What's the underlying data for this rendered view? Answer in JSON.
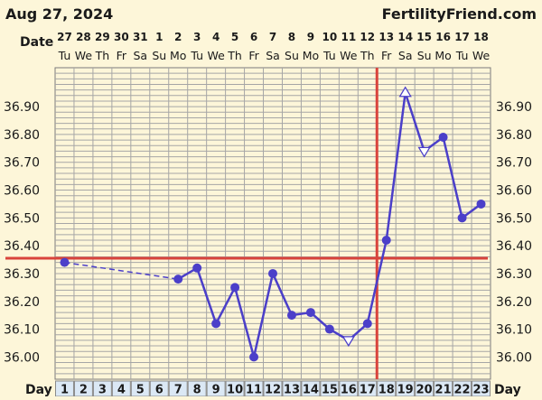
{
  "header": {
    "chart_date": "Aug 27, 2024",
    "site": "FertilityFriend.com",
    "date_label": "Date",
    "day_label_left": "Day",
    "day_label_right": "Day"
  },
  "colors": {
    "background": "#fdf6d9",
    "grid": "#a6a6a6",
    "plot_bg": "#fdf6d9",
    "series": "#4b3fc9",
    "coverline": "#d9443c",
    "ovulation_line": "#d9443c",
    "day_box": "#dbe8f5"
  },
  "chart_data": {
    "type": "line",
    "title": "",
    "xlabel": "Day",
    "ylabel": "",
    "ylim": [
      35.92,
      37.04
    ],
    "yticks": [
      "36.00",
      "36.10",
      "36.20",
      "36.30",
      "36.40",
      "36.50",
      "36.60",
      "36.70",
      "36.80",
      "36.90"
    ],
    "dates": [
      "27",
      "28",
      "29",
      "30",
      "31",
      "1",
      "2",
      "3",
      "4",
      "5",
      "6",
      "7",
      "8",
      "9",
      "10",
      "11",
      "12",
      "13",
      "14",
      "15",
      "16",
      "17",
      "18"
    ],
    "weekdays": [
      "Tu",
      "We",
      "Th",
      "Fr",
      "Sa",
      "Su",
      "Mo",
      "Tu",
      "We",
      "Th",
      "Fr",
      "Sa",
      "Su",
      "Mo",
      "Tu",
      "We",
      "Th",
      "Fr",
      "Sa",
      "Su",
      "Mo",
      "Tu",
      "We"
    ],
    "days": [
      1,
      2,
      3,
      4,
      5,
      6,
      7,
      8,
      9,
      10,
      11,
      12,
      13,
      14,
      15,
      16,
      17,
      18,
      19,
      20,
      21,
      22,
      23
    ],
    "temperatures": [
      {
        "day": 1,
        "temp": 36.34,
        "marker": "dot"
      },
      {
        "day": 7,
        "temp": 36.28,
        "marker": "dot"
      },
      {
        "day": 8,
        "temp": 36.32,
        "marker": "dot"
      },
      {
        "day": 9,
        "temp": 36.12,
        "marker": "dot"
      },
      {
        "day": 10,
        "temp": 36.25,
        "marker": "dot"
      },
      {
        "day": 11,
        "temp": 36.0,
        "marker": "dot"
      },
      {
        "day": 12,
        "temp": 36.3,
        "marker": "dot"
      },
      {
        "day": 13,
        "temp": 36.15,
        "marker": "dot"
      },
      {
        "day": 14,
        "temp": 36.16,
        "marker": "dot"
      },
      {
        "day": 15,
        "temp": 36.1,
        "marker": "dot"
      },
      {
        "day": 16,
        "temp": 36.06,
        "marker": "triangle-down"
      },
      {
        "day": 17,
        "temp": 36.12,
        "marker": "dot"
      },
      {
        "day": 18,
        "temp": 36.42,
        "marker": "dot"
      },
      {
        "day": 19,
        "temp": 36.95,
        "marker": "triangle-up"
      },
      {
        "day": 20,
        "temp": 36.74,
        "marker": "triangle-down"
      },
      {
        "day": 21,
        "temp": 36.79,
        "marker": "dot"
      },
      {
        "day": 22,
        "temp": 36.5,
        "marker": "dot"
      },
      {
        "day": 23,
        "temp": 36.55,
        "marker": "dot"
      }
    ],
    "dashed_segment": [
      1,
      7
    ],
    "coverline": 36.355,
    "ovulation_day": 17.5,
    "grid": true
  }
}
